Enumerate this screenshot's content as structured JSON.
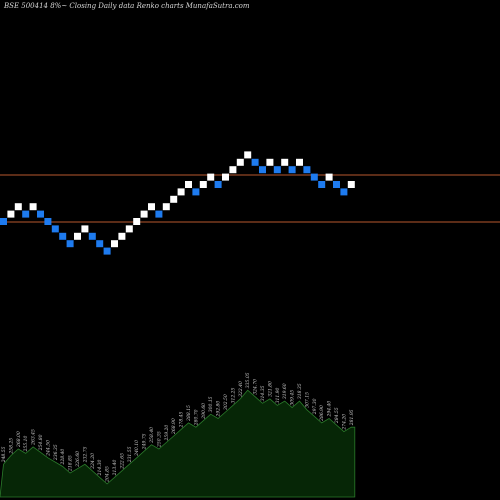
{
  "title": "BSE 500414  8%~  Closing Daily data  Renko  charts MunafaSutra.com",
  "colors": {
    "background": "#000000",
    "brick_up": "#ffffff",
    "brick_down": "#1e7bef",
    "level_line": "#b8582e",
    "volume_fill": "#062606",
    "volume_line": "#2a7a2a"
  },
  "chart_data": {
    "type": "renko",
    "title": "BSE 500414  8%~  Closing Daily data  Renko  charts MunafaSutra.com",
    "level_lines": [
      175,
      222
    ],
    "bricks": [
      {
        "level": 0,
        "dir": "down"
      },
      {
        "level": 1,
        "dir": "up"
      },
      {
        "level": 2,
        "dir": "up"
      },
      {
        "level": 1,
        "dir": "down"
      },
      {
        "level": 2,
        "dir": "up"
      },
      {
        "level": 1,
        "dir": "down"
      },
      {
        "level": 0,
        "dir": "down"
      },
      {
        "level": -1,
        "dir": "down"
      },
      {
        "level": -2,
        "dir": "down"
      },
      {
        "level": -3,
        "dir": "down"
      },
      {
        "level": -2,
        "dir": "up"
      },
      {
        "level": -1,
        "dir": "up"
      },
      {
        "level": -2,
        "dir": "down"
      },
      {
        "level": -3,
        "dir": "down"
      },
      {
        "level": -4,
        "dir": "down"
      },
      {
        "level": -3,
        "dir": "up"
      },
      {
        "level": -2,
        "dir": "up"
      },
      {
        "level": -1,
        "dir": "up"
      },
      {
        "level": 0,
        "dir": "up"
      },
      {
        "level": 1,
        "dir": "up"
      },
      {
        "level": 2,
        "dir": "up"
      },
      {
        "level": 1,
        "dir": "down"
      },
      {
        "level": 2,
        "dir": "up"
      },
      {
        "level": 3,
        "dir": "up"
      },
      {
        "level": 4,
        "dir": "up"
      },
      {
        "level": 5,
        "dir": "up"
      },
      {
        "level": 4,
        "dir": "down"
      },
      {
        "level": 5,
        "dir": "up"
      },
      {
        "level": 6,
        "dir": "up"
      },
      {
        "level": 5,
        "dir": "down"
      },
      {
        "level": 6,
        "dir": "up"
      },
      {
        "level": 7,
        "dir": "up"
      },
      {
        "level": 8,
        "dir": "up"
      },
      {
        "level": 9,
        "dir": "up"
      },
      {
        "level": 8,
        "dir": "down"
      },
      {
        "level": 7,
        "dir": "down"
      },
      {
        "level": 8,
        "dir": "up"
      },
      {
        "level": 7,
        "dir": "down"
      },
      {
        "level": 8,
        "dir": "up"
      },
      {
        "level": 7,
        "dir": "down"
      },
      {
        "level": 8,
        "dir": "up"
      },
      {
        "level": 7,
        "dir": "down"
      },
      {
        "level": 6,
        "dir": "down"
      },
      {
        "level": 5,
        "dir": "down"
      },
      {
        "level": 6,
        "dir": "up"
      },
      {
        "level": 5,
        "dir": "down"
      },
      {
        "level": 4,
        "dir": "down"
      },
      {
        "level": 5,
        "dir": "up"
      }
    ],
    "volume": [
      {
        "value": 0.3,
        "label": "248.55"
      },
      {
        "value": 0.38,
        "label": "258.25"
      },
      {
        "value": 0.44,
        "label": "268.00"
      },
      {
        "value": 0.4,
        "label": "255.10"
      },
      {
        "value": 0.46,
        "label": "263.45"
      },
      {
        "value": 0.41,
        "label": "254.80"
      },
      {
        "value": 0.36,
        "label": "244.50"
      },
      {
        "value": 0.32,
        "label": "236.35"
      },
      {
        "value": 0.28,
        "label": "228.40"
      },
      {
        "value": 0.22,
        "label": "218.85"
      },
      {
        "value": 0.26,
        "label": "226.60"
      },
      {
        "value": 0.3,
        "label": "232.75"
      },
      {
        "value": 0.24,
        "label": "224.20"
      },
      {
        "value": 0.18,
        "label": "214.30"
      },
      {
        "value": 0.12,
        "label": "204.85"
      },
      {
        "value": 0.18,
        "label": "213.40"
      },
      {
        "value": 0.24,
        "label": "222.65"
      },
      {
        "value": 0.3,
        "label": "231.55"
      },
      {
        "value": 0.36,
        "label": "240.10"
      },
      {
        "value": 0.42,
        "label": "249.75"
      },
      {
        "value": 0.48,
        "label": "258.40"
      },
      {
        "value": 0.44,
        "label": "250.35"
      },
      {
        "value": 0.5,
        "label": "259.20"
      },
      {
        "value": 0.56,
        "label": "268.90"
      },
      {
        "value": 0.62,
        "label": "278.45"
      },
      {
        "value": 0.68,
        "label": "288.15"
      },
      {
        "value": 0.64,
        "label": "280.70"
      },
      {
        "value": 0.7,
        "label": "290.60"
      },
      {
        "value": 0.76,
        "label": "300.15"
      },
      {
        "value": 0.72,
        "label": "292.80"
      },
      {
        "value": 0.78,
        "label": "302.50"
      },
      {
        "value": 0.84,
        "label": "312.25"
      },
      {
        "value": 0.9,
        "label": "322.40"
      },
      {
        "value": 0.98,
        "label": "335.05"
      },
      {
        "value": 0.92,
        "label": "324.70"
      },
      {
        "value": 0.86,
        "label": "314.35"
      },
      {
        "value": 0.9,
        "label": "321.80"
      },
      {
        "value": 0.84,
        "label": "311.90"
      },
      {
        "value": 0.88,
        "label": "319.60"
      },
      {
        "value": 0.82,
        "label": "309.45"
      },
      {
        "value": 0.88,
        "label": "318.35"
      },
      {
        "value": 0.8,
        "label": "307.15"
      },
      {
        "value": 0.74,
        "label": "297.30"
      },
      {
        "value": 0.68,
        "label": "286.90"
      },
      {
        "value": 0.72,
        "label": "294.40"
      },
      {
        "value": 0.66,
        "label": "284.55"
      },
      {
        "value": 0.6,
        "label": "274.20"
      },
      {
        "value": 0.64,
        "label": "281.95"
      }
    ]
  }
}
